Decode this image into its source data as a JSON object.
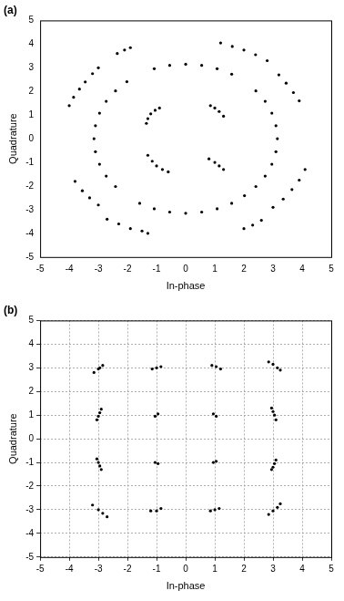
{
  "chart_data": [
    {
      "type": "scatter",
      "title": "(a)",
      "xlabel": "In-phase",
      "ylabel": "Quadrature",
      "color": "#000000",
      "marker": "circle",
      "grid": false,
      "xlim": [
        -5,
        5
      ],
      "ylim": [
        -5,
        5
      ],
      "xticks": [
        -5,
        -4,
        -3,
        -2,
        -1,
        0,
        1,
        2,
        3,
        4,
        5
      ],
      "yticks": [
        -5,
        -4,
        -3,
        -2,
        -1,
        0,
        1,
        2,
        3,
        4,
        5
      ],
      "x": [
        -4.0,
        -3.85,
        -3.65,
        -3.45,
        -3.2,
        -3.0,
        -2.35,
        -2.1,
        -1.9,
        1.2,
        1.6,
        2.0,
        2.4,
        2.8,
        3.2,
        3.45,
        3.7,
        3.9,
        4.1,
        3.9,
        3.65,
        3.35,
        3.0,
        2.6,
        2.3,
        2.0,
        -3.8,
        -3.55,
        -3.3,
        -3.0,
        -2.7,
        -2.3,
        -1.9,
        -1.5,
        -1.3,
        3.15,
        3.1,
        2.96,
        2.73,
        2.41,
        1.58,
        1.08,
        0.55,
        0,
        -0.55,
        -1.08,
        -2.02,
        -2.41,
        -2.73,
        -2.96,
        -3.1,
        -3.15,
        -3.1,
        -2.96,
        -2.73,
        -2.41,
        -1.58,
        -1.08,
        -0.55,
        0,
        0.55,
        1.08,
        1.58,
        2.02,
        2.41,
        2.73,
        2.96,
        3.1,
        -1.35,
        -1.3,
        -1.2,
        -1.05,
        -0.9,
        0.85,
        1.0,
        1.15,
        1.3,
        -1.3,
        -1.15,
        -1.0,
        -0.8,
        -0.6,
        0.8,
        1.0,
        1.15,
        1.3
      ],
      "values": [
        1.4,
        1.75,
        2.1,
        2.4,
        2.75,
        3.0,
        3.6,
        3.75,
        3.85,
        4.05,
        3.9,
        3.75,
        3.55,
        3.3,
        2.7,
        2.35,
        1.95,
        1.6,
        -1.3,
        -1.75,
        -2.15,
        -2.55,
        -2.9,
        -3.45,
        -3.65,
        -3.8,
        -1.8,
        -2.2,
        -2.5,
        -2.8,
        -3.4,
        -3.6,
        -3.8,
        -3.9,
        -4.0,
        0,
        0.55,
        1.08,
        1.58,
        2.02,
        2.73,
        2.96,
        3.1,
        3.15,
        3.1,
        2.96,
        2.41,
        2.02,
        1.58,
        1.08,
        0.55,
        0,
        -0.55,
        -1.08,
        -1.58,
        -2.02,
        -2.73,
        -2.96,
        -3.1,
        -3.15,
        -3.1,
        -2.96,
        -2.73,
        -2.41,
        -2.02,
        -1.58,
        -1.08,
        -0.55,
        0.65,
        0.85,
        1.05,
        1.2,
        1.3,
        1.4,
        1.3,
        1.15,
        0.95,
        -0.7,
        -0.95,
        -1.15,
        -1.3,
        -1.4,
        -0.85,
        -1.0,
        -1.15,
        -1.3
      ]
    },
    {
      "type": "scatter",
      "title": "(b)",
      "xlabel": "In-phase",
      "ylabel": "Quadrature",
      "color": "#000000",
      "marker": "circle",
      "grid": true,
      "xlim": [
        -5,
        5
      ],
      "ylim": [
        -5,
        5
      ],
      "xticks": [
        -5,
        -4,
        -3,
        -2,
        -1,
        0,
        1,
        2,
        3,
        4,
        5
      ],
      "yticks": [
        -5,
        -4,
        -3,
        -2,
        -1,
        0,
        1,
        2,
        3,
        4,
        5
      ],
      "x": [
        -3.15,
        -3.0,
        -2.85,
        -2.95,
        -1.15,
        -1.0,
        -0.85,
        0.9,
        1.05,
        1.2,
        2.85,
        3.0,
        3.15,
        3.25,
        -3.05,
        -3.0,
        -2.95,
        -2.9,
        -1.05,
        -0.95,
        0.95,
        1.05,
        2.95,
        3.0,
        3.05,
        3.1,
        -3.05,
        -3.0,
        -2.95,
        -2.9,
        -1.05,
        -0.95,
        0.95,
        1.05,
        3.1,
        3.05,
        3.0,
        2.95,
        -3.2,
        -3.0,
        -2.85,
        -2.7,
        -1.2,
        -1.0,
        -0.85,
        0.85,
        1.0,
        1.15,
        2.85,
        3.0,
        3.15,
        3.25
      ],
      "values": [
        2.8,
        2.95,
        3.1,
        3.0,
        2.95,
        3.0,
        3.05,
        3.1,
        3.05,
        2.95,
        3.25,
        3.15,
        3.0,
        2.9,
        0.8,
        0.95,
        1.1,
        1.25,
        0.95,
        1.05,
        1.05,
        0.95,
        1.3,
        1.15,
        1.0,
        0.8,
        -0.85,
        -1.0,
        -1.15,
        -1.3,
        -1.0,
        -1.05,
        -1.0,
        -0.95,
        -0.9,
        -1.05,
        -1.2,
        -1.3,
        -2.8,
        -3.0,
        -3.15,
        -3.3,
        -3.05,
        -3.05,
        -2.95,
        -3.05,
        -3.0,
        -2.95,
        -3.2,
        -3.05,
        -2.9,
        -2.75
      ]
    }
  ]
}
